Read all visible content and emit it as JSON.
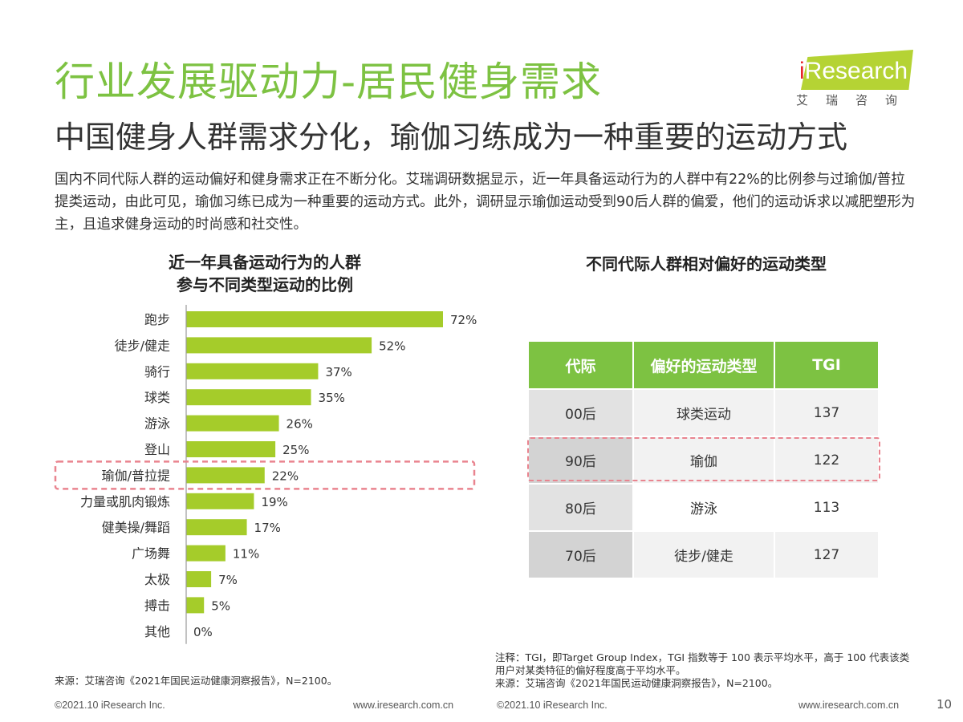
{
  "header": {
    "title": "行业发展驱动力-居民健身需求",
    "subtitle": "中国健身人群需求分化，瑜伽习练成为一种重要的运动方式",
    "intro": "国内不同代际人群的运动偏好和健身需求正在不断分化。艾瑞调研数据显示，近一年具备运动行为的人群中有22%的比例参与过瑜伽/普拉提类运动，由此可见，瑜伽习练已成为一种重要的运动方式。此外，调研显示瑜伽运动受到90后人群的偏爱，他们的运动诉求以减肥塑形为主，且追求健身运动的时尚感和社交性。"
  },
  "logo": {
    "prefix": "i",
    "name": "Research",
    "sub": "艾瑞咨询",
    "badge_color": "#b5d334"
  },
  "colors": {
    "accent": "#7dc242",
    "bar": "#a5cc2a",
    "highlight": "#e9848f"
  },
  "chart_data": {
    "type": "bar",
    "orientation": "horizontal",
    "title": "近一年具备运动行为的人群 参与不同类型运动的比例",
    "title_lines": [
      "近一年具备运动行为的人群",
      "参与不同类型运动的比例"
    ],
    "categories": [
      "跑步",
      "徒步/健走",
      "骑行",
      "球类",
      "游泳",
      "登山",
      "瑜伽/普拉提",
      "力量或肌肉锻炼",
      "健美操/舞蹈",
      "广场舞",
      "太极",
      "搏击",
      "其他"
    ],
    "values": [
      72,
      52,
      37,
      35,
      26,
      25,
      22,
      19,
      17,
      11,
      7,
      5,
      0
    ],
    "value_labels": [
      "72%",
      "52%",
      "37%",
      "35%",
      "26%",
      "25%",
      "22%",
      "19%",
      "17%",
      "11%",
      "7%",
      "5%",
      "0%"
    ],
    "unit": "%",
    "xlim": [
      0,
      100
    ],
    "grid": false,
    "highlighted_category": "瑜伽/普拉提"
  },
  "table": {
    "title": "不同代际人群相对偏好的运动类型",
    "headers": [
      "代际",
      "偏好的运动类型",
      "TGI"
    ],
    "rows": [
      {
        "gen": "00后",
        "type": "球类运动",
        "tgi": "137"
      },
      {
        "gen": "90后",
        "type": "瑜伽",
        "tgi": "122"
      },
      {
        "gen": "80后",
        "type": "游泳",
        "tgi": "113"
      },
      {
        "gen": "70后",
        "type": "徒步/健走",
        "tgi": "127"
      }
    ]
  },
  "notes": {
    "left_source": "来源：艾瑞咨询《2021年国民运动健康洞察报告》，N=2100。",
    "right_note": "注释：TGI，即Target Group Index，TGI 指数等于 100 表示平均水平，高于 100 代表该类用户对某类特征的偏好程度高于平均水平。",
    "right_source": "来源：艾瑞咨询《2021年国民运动健康洞察报告》，N=2100。"
  },
  "footer": {
    "copyright_left": "©2021.10 iResearch Inc.",
    "url_left": "www.iresearch.com.cn",
    "copyright_right": "©2021.10 iResearch Inc.",
    "url_right": "www.iresearch.com.cn",
    "page": "10"
  }
}
